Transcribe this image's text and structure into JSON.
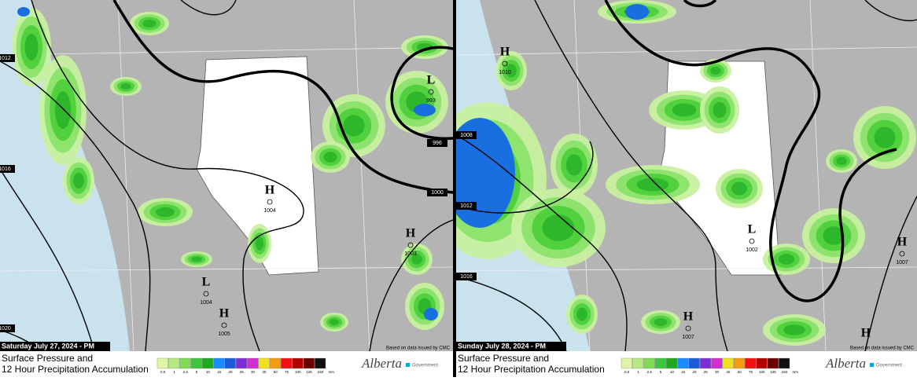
{
  "footer": {
    "line1": "Surface Pressure and",
    "line2": "12 Hour Precipitation Accumulation",
    "credit": "Based on data issued by CMC",
    "logo": "Alberta",
    "logo_sub": "Government"
  },
  "legend": {
    "labels": [
      "0.5",
      "1",
      "2.5",
      "5",
      "10",
      "15",
      "20",
      "25",
      "30",
      "40",
      "50",
      "75",
      "100",
      "125",
      "150"
    ],
    "unit": "mm"
  },
  "panels": [
    {
      "date": "Saturday July 27, 2024 - PM",
      "systems": [
        {
          "symbol": "H",
          "pressure": 1004
        },
        {
          "symbol": "L",
          "pressure": 993
        },
        {
          "symbol": "H",
          "pressure": 1003
        },
        {
          "symbol": "L",
          "pressure": 1004
        },
        {
          "symbol": "H",
          "pressure": 1005
        }
      ],
      "isobar_labels": [
        1012,
        1016,
        1020,
        996,
        1000
      ]
    },
    {
      "date": "Sunday July 28, 2024 - PM",
      "systems": [
        {
          "symbol": "H",
          "pressure": 1010
        },
        {
          "symbol": "L",
          "pressure": 1002
        },
        {
          "symbol": "H",
          "pressure": 1007
        },
        {
          "symbol": "H",
          "pressure": 1007
        },
        {
          "symbol": "H"
        }
      ],
      "isobar_labels": [
        1008,
        1012,
        1016
      ]
    }
  ]
}
